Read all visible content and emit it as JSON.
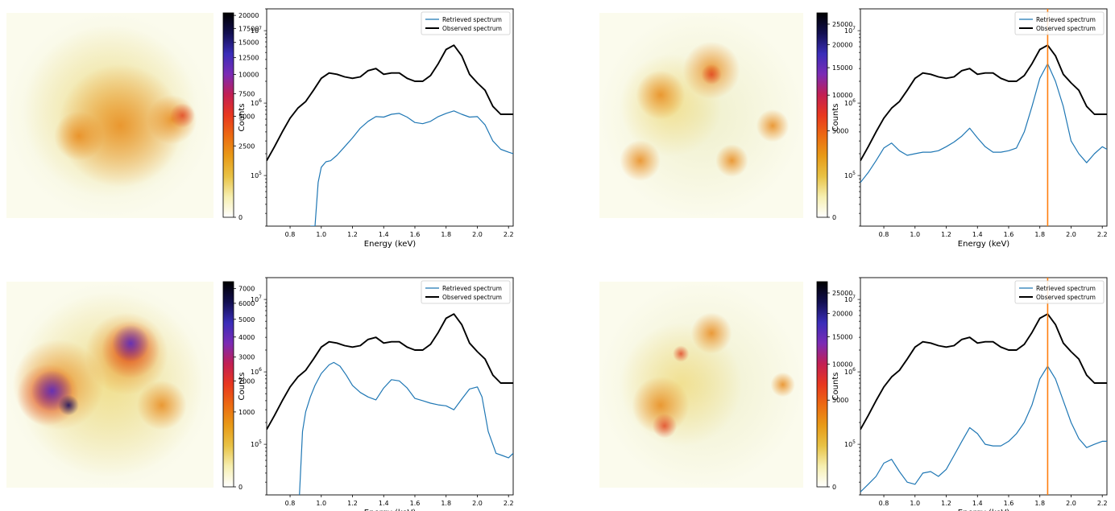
{
  "palette": {
    "retrieved": "#1f77b4",
    "observed": "#000000",
    "marker": "#ff7f0e",
    "colormap": [
      "#ffffff",
      "#f6efb0",
      "#e8c245",
      "#e89a17",
      "#ec6a12",
      "#e8371f",
      "#c21f53",
      "#7a2bb5",
      "#3a2db8",
      "#120f50",
      "#000000"
    ]
  },
  "chart_data": [
    {
      "type": "heatmap",
      "panel": "top-left",
      "colorbar": {
        "min": 0,
        "max": 20500,
        "scale": "sqrt",
        "ticks": [
          "0",
          "2500",
          "5000",
          "7500",
          "10000",
          "12500",
          "15000",
          "17500",
          "20000"
        ]
      }
    },
    {
      "type": "line",
      "panel": "top-left",
      "xlabel": "Energy (keV)",
      "ylabel": "Counts",
      "xlim": [
        0.65,
        2.23
      ],
      "ylim": [
        20000,
        20000000
      ],
      "yscale": "log",
      "xticks": [
        "0.8",
        "1.0",
        "1.2",
        "1.4",
        "1.6",
        "1.8",
        "2.0",
        "2.2"
      ],
      "legend": {
        "placement": "upper right",
        "entries": [
          "Retrieved spectrum",
          "Observed spectrum"
        ]
      },
      "series": [
        {
          "name": "Retrieved spectrum",
          "x": [
            0.93,
            0.96,
            0.98,
            1.0,
            1.03,
            1.06,
            1.1,
            1.15,
            1.2,
            1.25,
            1.3,
            1.35,
            1.4,
            1.45,
            1.5,
            1.55,
            1.6,
            1.65,
            1.7,
            1.75,
            1.8,
            1.85,
            1.9,
            1.95,
            2.0,
            2.05,
            2.1,
            2.15,
            2.2,
            2.23
          ],
          "y": [
            20000,
            20000,
            80000,
            130000,
            155000,
            160000,
            190000,
            250000,
            330000,
            450000,
            560000,
            650000,
            640000,
            700000,
            720000,
            640000,
            540000,
            520000,
            560000,
            650000,
            720000,
            780000,
            700000,
            640000,
            650000,
            500000,
            300000,
            230000,
            210000,
            200000
          ]
        },
        {
          "name": "Observed spectrum",
          "x": [
            0.65,
            0.7,
            0.75,
            0.8,
            0.85,
            0.9,
            0.95,
            1.0,
            1.05,
            1.1,
            1.15,
            1.2,
            1.25,
            1.3,
            1.35,
            1.4,
            1.45,
            1.5,
            1.55,
            1.6,
            1.65,
            1.7,
            1.75,
            1.8,
            1.85,
            1.9,
            1.95,
            2.0,
            2.05,
            2.1,
            2.15,
            2.2,
            2.23
          ],
          "y": [
            160000,
            250000,
            400000,
            620000,
            850000,
            1050000,
            1500000,
            2200000,
            2600000,
            2500000,
            2300000,
            2200000,
            2300000,
            2800000,
            3000000,
            2500000,
            2600000,
            2600000,
            2200000,
            2000000,
            2000000,
            2400000,
            3500000,
            5500000,
            6300000,
            4500000,
            2500000,
            1900000,
            1500000,
            900000,
            700000,
            700000,
            700000
          ]
        }
      ]
    },
    {
      "type": "heatmap",
      "panel": "top-right",
      "colorbar": {
        "min": 0,
        "max": 28000,
        "scale": "sqrt",
        "ticks": [
          "0",
          "5000",
          "10000",
          "15000",
          "20000",
          "25000"
        ]
      }
    },
    {
      "type": "line",
      "panel": "top-right",
      "xlabel": "Energy (keV)",
      "ylabel": "Counts",
      "xlim": [
        0.65,
        2.23
      ],
      "ylim": [
        20000,
        20000000
      ],
      "yscale": "log",
      "xticks": [
        "0.8",
        "1.0",
        "1.2",
        "1.4",
        "1.6",
        "1.8",
        "2.0",
        "2.2"
      ],
      "vline": 1.85,
      "legend": {
        "placement": "upper right",
        "entries": [
          "Retrieved spectrum",
          "Observed spectrum"
        ]
      },
      "series": [
        {
          "name": "Retrieved spectrum",
          "x": [
            0.65,
            0.7,
            0.75,
            0.8,
            0.85,
            0.9,
            0.95,
            1.0,
            1.05,
            1.1,
            1.15,
            1.2,
            1.25,
            1.3,
            1.35,
            1.4,
            1.45,
            1.5,
            1.55,
            1.6,
            1.65,
            1.7,
            1.75,
            1.8,
            1.85,
            1.9,
            1.95,
            2.0,
            2.05,
            2.1,
            2.15,
            2.2,
            2.23
          ],
          "y": [
            80000,
            110000,
            160000,
            240000,
            280000,
            220000,
            190000,
            200000,
            210000,
            210000,
            220000,
            250000,
            290000,
            350000,
            450000,
            330000,
            250000,
            210000,
            210000,
            220000,
            240000,
            400000,
            900000,
            2200000,
            3500000,
            2000000,
            900000,
            300000,
            200000,
            150000,
            200000,
            250000,
            230000
          ]
        },
        {
          "name": "Observed spectrum",
          "x": [
            0.65,
            0.7,
            0.75,
            0.8,
            0.85,
            0.9,
            0.95,
            1.0,
            1.05,
            1.1,
            1.15,
            1.2,
            1.25,
            1.3,
            1.35,
            1.4,
            1.45,
            1.5,
            1.55,
            1.6,
            1.65,
            1.7,
            1.75,
            1.8,
            1.85,
            1.9,
            1.95,
            2.0,
            2.05,
            2.1,
            2.15,
            2.2,
            2.23
          ],
          "y": [
            160000,
            250000,
            400000,
            620000,
            850000,
            1050000,
            1500000,
            2200000,
            2600000,
            2500000,
            2300000,
            2200000,
            2300000,
            2800000,
            3000000,
            2500000,
            2600000,
            2600000,
            2200000,
            2000000,
            2000000,
            2400000,
            3500000,
            5500000,
            6300000,
            4500000,
            2500000,
            1900000,
            1500000,
            900000,
            700000,
            700000,
            700000
          ]
        }
      ]
    },
    {
      "type": "heatmap",
      "panel": "bottom-left",
      "colorbar": {
        "min": 0,
        "max": 7500,
        "scale": "sqrt",
        "ticks": [
          "0",
          "1000",
          "2000",
          "3000",
          "4000",
          "5000",
          "6000",
          "7000"
        ]
      }
    },
    {
      "type": "line",
      "panel": "bottom-left",
      "xlabel": "Energy (keV)",
      "ylabel": "Counts",
      "xlim": [
        0.65,
        2.23
      ],
      "ylim": [
        20000,
        20000000
      ],
      "yscale": "log",
      "xticks": [
        "0.8",
        "1.0",
        "1.2",
        "1.4",
        "1.6",
        "1.8",
        "2.0",
        "2.2"
      ],
      "legend": {
        "placement": "upper right",
        "entries": [
          "Retrieved spectrum",
          "Observed spectrum"
        ]
      },
      "series": [
        {
          "name": "Retrieved spectrum",
          "x": [
            0.86,
            0.88,
            0.9,
            0.93,
            0.96,
            1.0,
            1.05,
            1.08,
            1.12,
            1.16,
            1.2,
            1.25,
            1.3,
            1.35,
            1.4,
            1.45,
            1.5,
            1.55,
            1.6,
            1.65,
            1.7,
            1.75,
            1.8,
            1.85,
            1.9,
            1.95,
            2.0,
            2.03,
            2.07,
            2.12,
            2.16,
            2.2,
            2.23
          ],
          "y": [
            20000,
            150000,
            280000,
            450000,
            650000,
            950000,
            1250000,
            1350000,
            1200000,
            900000,
            650000,
            520000,
            450000,
            410000,
            600000,
            780000,
            750000,
            600000,
            430000,
            400000,
            370000,
            350000,
            340000,
            300000,
            420000,
            580000,
            620000,
            450000,
            150000,
            75000,
            70000,
            65000,
            75000
          ]
        },
        {
          "name": "Observed spectrum",
          "x": [
            0.65,
            0.7,
            0.75,
            0.8,
            0.85,
            0.9,
            0.95,
            1.0,
            1.05,
            1.1,
            1.15,
            1.2,
            1.25,
            1.3,
            1.35,
            1.4,
            1.45,
            1.5,
            1.55,
            1.6,
            1.65,
            1.7,
            1.75,
            1.8,
            1.85,
            1.9,
            1.95,
            2.0,
            2.05,
            2.1,
            2.15,
            2.2,
            2.23
          ],
          "y": [
            160000,
            250000,
            400000,
            620000,
            850000,
            1050000,
            1500000,
            2200000,
            2600000,
            2500000,
            2300000,
            2200000,
            2300000,
            2800000,
            3000000,
            2500000,
            2600000,
            2600000,
            2200000,
            2000000,
            2000000,
            2400000,
            3500000,
            5500000,
            6300000,
            4500000,
            2500000,
            1900000,
            1500000,
            900000,
            700000,
            700000,
            700000
          ]
        }
      ]
    },
    {
      "type": "heatmap",
      "panel": "bottom-right",
      "colorbar": {
        "min": 0,
        "max": 28000,
        "scale": "sqrt",
        "ticks": [
          "0",
          "5000",
          "10000",
          "15000",
          "20000",
          "25000"
        ]
      }
    },
    {
      "type": "line",
      "panel": "bottom-right",
      "xlabel": "Energy (keV)",
      "ylabel": "Counts",
      "xlim": [
        0.65,
        2.23
      ],
      "ylim": [
        20000,
        20000000
      ],
      "yscale": "log",
      "xticks": [
        "0.8",
        "1.0",
        "1.2",
        "1.4",
        "1.6",
        "1.8",
        "2.0",
        "2.2"
      ],
      "vline": 1.85,
      "legend": {
        "placement": "upper right",
        "entries": [
          "Retrieved spectrum",
          "Observed spectrum"
        ]
      },
      "series": [
        {
          "name": "Retrieved spectrum",
          "x": [
            0.65,
            0.7,
            0.75,
            0.8,
            0.85,
            0.9,
            0.95,
            1.0,
            1.05,
            1.1,
            1.15,
            1.2,
            1.25,
            1.3,
            1.35,
            1.4,
            1.45,
            1.5,
            1.55,
            1.6,
            1.65,
            1.7,
            1.75,
            1.8,
            1.85,
            1.9,
            1.95,
            2.0,
            2.05,
            2.1,
            2.15,
            2.2,
            2.23
          ],
          "y": [
            22000,
            28000,
            36000,
            55000,
            62000,
            42000,
            30000,
            28000,
            40000,
            42000,
            36000,
            45000,
            70000,
            110000,
            170000,
            140000,
            100000,
            95000,
            95000,
            110000,
            140000,
            200000,
            350000,
            800000,
            1200000,
            800000,
            400000,
            200000,
            120000,
            90000,
            100000,
            110000,
            110000
          ]
        },
        {
          "name": "Observed spectrum",
          "x": [
            0.65,
            0.7,
            0.75,
            0.8,
            0.85,
            0.9,
            0.95,
            1.0,
            1.05,
            1.1,
            1.15,
            1.2,
            1.25,
            1.3,
            1.35,
            1.4,
            1.45,
            1.5,
            1.55,
            1.6,
            1.65,
            1.7,
            1.75,
            1.8,
            1.85,
            1.9,
            1.95,
            2.0,
            2.05,
            2.1,
            2.15,
            2.2,
            2.23
          ],
          "y": [
            160000,
            250000,
            400000,
            620000,
            850000,
            1050000,
            1500000,
            2200000,
            2600000,
            2500000,
            2300000,
            2200000,
            2300000,
            2800000,
            3000000,
            2500000,
            2600000,
            2600000,
            2200000,
            2000000,
            2000000,
            2400000,
            3500000,
            5500000,
            6300000,
            4500000,
            2500000,
            1900000,
            1500000,
            900000,
            700000,
            700000,
            700000
          ]
        }
      ]
    }
  ]
}
